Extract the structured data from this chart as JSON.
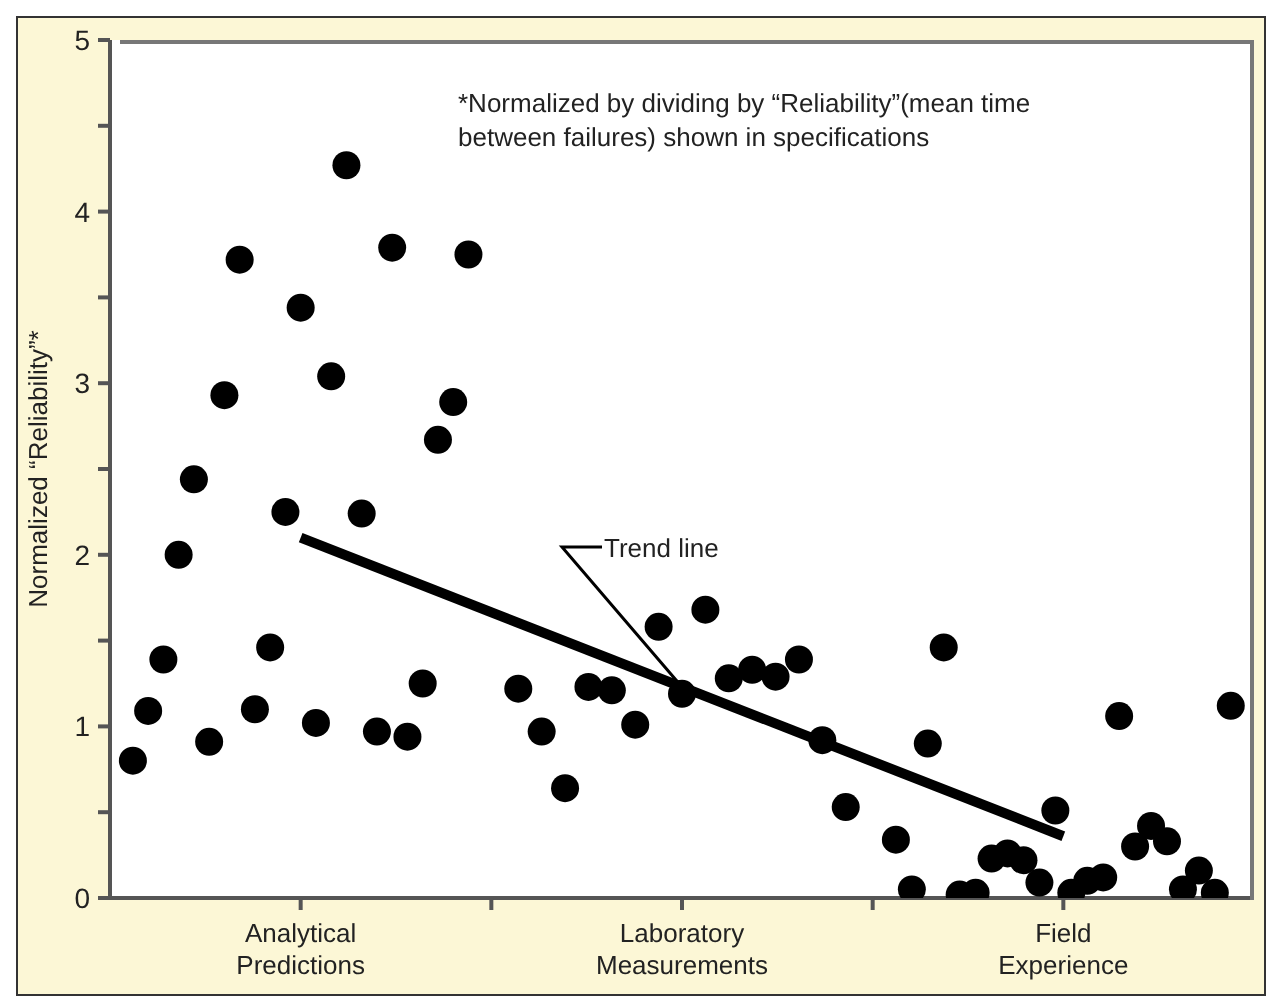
{
  "chart_data": {
    "type": "scatter",
    "ylabel": "Normalized “Reliability”*",
    "annotations": [
      "*Normalized by dividing by “Reliability”(mean time between failures) shown in specifications",
      {
        "text": "Trend line",
        "x": "Laboratory Measurements",
        "y": 1.23
      }
    ],
    "categories": [
      "Analytical Predictions",
      "Laboratory Measurements",
      "Field Experience"
    ],
    "ylim": [
      0,
      5
    ],
    "yticks": [
      0,
      {
        "value": 0.5,
        "label": null
      },
      1,
      {
        "value": 1.5,
        "label": null
      },
      2,
      {
        "value": 2.5,
        "label": null
      },
      3,
      {
        "value": 3.5,
        "label": null
      },
      4,
      {
        "value": 4.5,
        "label": null
      },
      5
    ],
    "marker": "circle",
    "series": [
      {
        "color": "#000000",
        "x": [
          "Analytical Predictions",
          "Analytical Predictions",
          "Analytical Predictions",
          "Analytical Predictions",
          "Analytical Predictions",
          "Analytical Predictions",
          "Analytical Predictions",
          "Analytical Predictions",
          "Analytical Predictions",
          "Analytical Predictions",
          "Analytical Predictions",
          "Analytical Predictions",
          "Analytical Predictions",
          "Analytical Predictions",
          "Analytical Predictions",
          "Analytical Predictions",
          "Analytical Predictions",
          "Analytical Predictions",
          "Analytical Predictions",
          "Analytical Predictions",
          "Analytical Predictions",
          "Analytical Predictions",
          "Analytical Predictions",
          "Laboratory Measurements",
          "Laboratory Measurements",
          "Laboratory Measurements",
          "Laboratory Measurements",
          "Laboratory Measurements",
          "Laboratory Measurements",
          "Laboratory Measurements",
          "Laboratory Measurements",
          "Laboratory Measurements",
          "Laboratory Measurements",
          "Laboratory Measurements",
          "Laboratory Measurements",
          "Laboratory Measurements",
          "Laboratory Measurements",
          "Laboratory Measurements",
          "Field Experience",
          "Field Experience",
          "Field Experience",
          "Field Experience",
          "Field Experience",
          "Field Experience",
          "Field Experience",
          "Field Experience",
          "Field Experience",
          "Field Experience",
          "Field Experience",
          "Field Experience",
          "Field Experience",
          "Field Experience",
          "Field Experience",
          "Field Experience",
          "Field Experience",
          "Field Experience",
          "Field Experience",
          "Field Experience",
          "Field Experience",
          "Field Experience"
        ],
        "values": [
          0.8,
          1.09,
          1.39,
          2.0,
          2.44,
          0.91,
          2.93,
          3.72,
          1.1,
          1.46,
          2.25,
          3.44,
          1.02,
          3.04,
          4.27,
          2.24,
          0.97,
          3.79,
          0.94,
          1.25,
          2.67,
          2.89,
          3.75,
          1.22,
          0.97,
          0.64,
          1.23,
          1.21,
          1.01,
          1.58,
          1.19,
          1.68,
          1.28,
          1.33,
          1.29,
          1.39,
          0.92,
          0.53,
          0.34,
          0.05,
          0.9,
          1.46,
          0.02,
          0.03,
          0.23,
          0.26,
          0.22,
          0.09,
          0.51,
          0.03,
          0.1,
          0.12,
          1.06,
          0.3,
          0.42,
          0.33,
          0.05,
          0.16,
          0.03,
          1.12
        ]
      },
      {
        "type": "line",
        "marker": "none",
        "color": "#000000",
        "x": [
          "Analytical Predictions",
          "Field Experience"
        ],
        "values": [
          2.1,
          0.36
        ]
      }
    ]
  }
}
